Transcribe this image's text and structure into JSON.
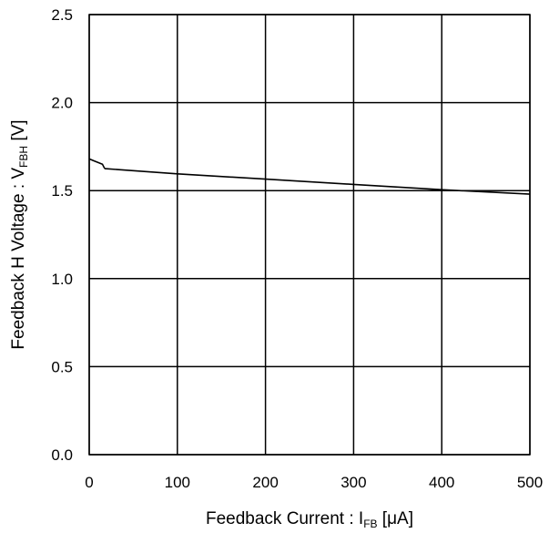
{
  "chart_data": {
    "type": "line",
    "title": "",
    "xlabel": {
      "main": "Feedback Current : I",
      "sub": "FB",
      "unit": " [μA]"
    },
    "ylabel": {
      "main": "Feedback H Voltage : V",
      "sub": "FBH",
      "unit": " [V]"
    },
    "xlim": [
      0,
      500
    ],
    "ylim": [
      0,
      2.5
    ],
    "xticks": [
      0,
      100,
      200,
      300,
      400,
      500
    ],
    "xtick_labels": [
      "0",
      "100",
      "200",
      "300",
      "400",
      "500"
    ],
    "yticks": [
      0,
      0.5,
      1.0,
      1.5,
      2.0,
      2.5
    ],
    "ytick_labels": [
      "0.0",
      "0.5",
      "1.0",
      "1.5",
      "2.0",
      "2.5"
    ],
    "grid": true,
    "legend": "none",
    "series": [
      {
        "color": "#000000",
        "x": [
          0,
          5,
          15,
          16,
          17,
          18,
          100,
          200,
          300,
          400,
          500
        ],
        "y": [
          1.68,
          1.67,
          1.65,
          1.64,
          1.63,
          1.625,
          1.595,
          1.565,
          1.535,
          1.505,
          1.48
        ]
      }
    ]
  }
}
